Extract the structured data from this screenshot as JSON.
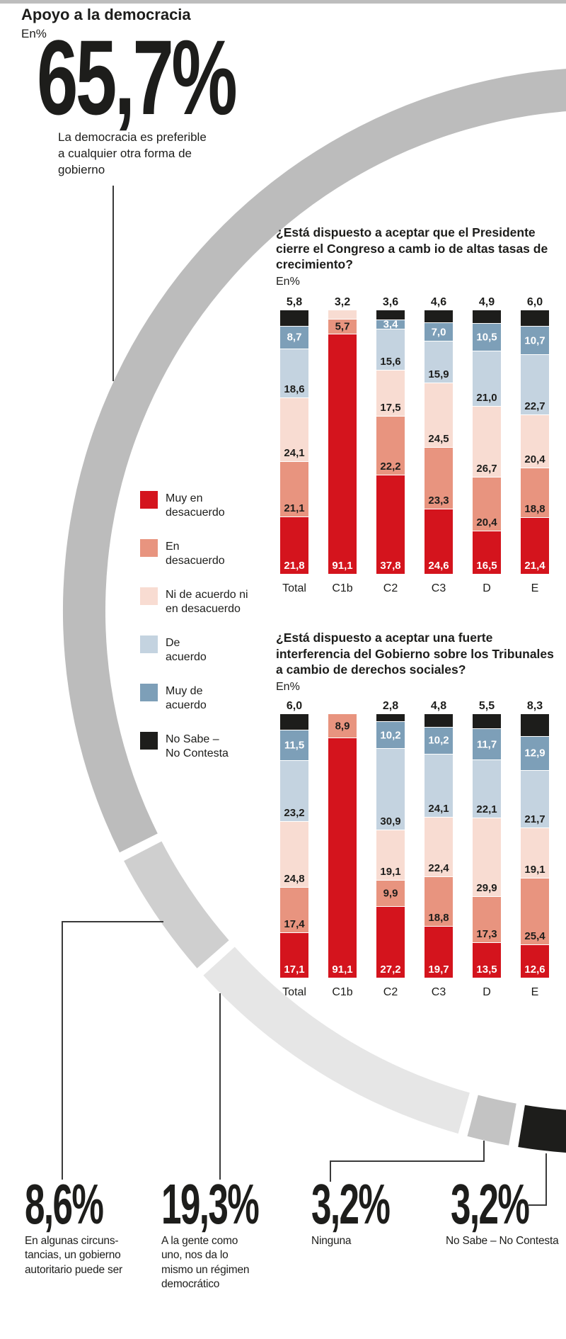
{
  "header": {
    "title": "Apoyo a la democracia",
    "unit": "En%"
  },
  "hero": {
    "value": "65,7%",
    "caption": "La democracia es preferible\na cualquier otra forma de\ngobierno"
  },
  "design": {
    "category_colors": {
      "muy_des": "#d4141d",
      "des": "#e8947f",
      "ni": "#f8dcd2",
      "ac": "#c4d3e0",
      "muy_ac": "#7d9fb8",
      "ns": "#1d1d1b"
    },
    "top_rule_color": "#bdbdbd",
    "leader_color": "#3a3a3a"
  },
  "legend": {
    "items": [
      {
        "key": "muy_des",
        "label": "Muy en\ndesacuerdo"
      },
      {
        "key": "des",
        "label": "En\ndesacuerdo"
      },
      {
        "key": "ni",
        "label": "Ni de acuerdo ni\nen desacuerdo"
      },
      {
        "key": "ac",
        "label": "De\nacuerdo"
      },
      {
        "key": "muy_ac",
        "label": "Muy de\nacuerdo"
      },
      {
        "key": "ns",
        "label": "No Sabe –\nNo Contesta"
      }
    ]
  },
  "chart_data": [
    {
      "type": "bar",
      "stacked": true,
      "title": "¿Está dispuesto a aceptar que el Presidente\ncierre el Congreso a camb io de altas tasas de\ncrecimiento?",
      "unit": "En%",
      "categories": [
        "Total",
        "C1b",
        "C2",
        "C3",
        "D",
        "E"
      ],
      "ylim": [
        0,
        100
      ],
      "series": [
        {
          "key": "ns",
          "name": "No Sabe – No Contesta",
          "values": [
            5.8,
            null,
            3.6,
            4.6,
            4.9,
            6.0
          ]
        },
        {
          "key": "muy_ac",
          "name": "Muy de acuerdo",
          "values": [
            8.7,
            null,
            3.4,
            7.0,
            10.5,
            10.7
          ]
        },
        {
          "key": "ac",
          "name": "De acuerdo",
          "values": [
            18.6,
            null,
            15.6,
            15.9,
            21.0,
            22.7
          ]
        },
        {
          "key": "ni",
          "name": "Ni de acuerdo ni en desacuerdo",
          "values": [
            24.1,
            3.2,
            17.5,
            24.5,
            26.7,
            20.4
          ]
        },
        {
          "key": "des",
          "name": "En desacuerdo",
          "values": [
            21.1,
            5.7,
            22.2,
            23.3,
            20.4,
            18.8
          ]
        },
        {
          "key": "muy_des",
          "name": "Muy en desacuerdo",
          "values": [
            21.8,
            91.1,
            37.8,
            24.6,
            16.5,
            21.4
          ]
        }
      ]
    },
    {
      "type": "bar",
      "stacked": true,
      "title": "¿Está dispuesto a aceptar una fuerte\ninterferencia del Gobierno sobre los Tribunales\na cambio de derechos sociales?",
      "unit": "En%",
      "categories": [
        "Total",
        "C1b",
        "C2",
        "C3",
        "D",
        "E"
      ],
      "ylim": [
        0,
        100
      ],
      "series": [
        {
          "key": "ns",
          "name": "No Sabe – No Contesta",
          "values": [
            6.0,
            null,
            2.8,
            4.8,
            5.5,
            8.3
          ]
        },
        {
          "key": "muy_ac",
          "name": "Muy de acuerdo",
          "values": [
            11.5,
            null,
            10.2,
            10.2,
            11.7,
            12.9
          ]
        },
        {
          "key": "ac",
          "name": "De acuerdo",
          "values": [
            23.2,
            null,
            30.9,
            24.1,
            22.1,
            21.7
          ]
        },
        {
          "key": "ni",
          "name": "Ni de acuerdo ni en desacuerdo",
          "values": [
            24.8,
            null,
            19.1,
            22.4,
            29.9,
            19.1
          ]
        },
        {
          "key": "des",
          "name": "En desacuerdo",
          "values": [
            17.4,
            8.9,
            9.9,
            18.8,
            17.3,
            25.4
          ]
        },
        {
          "key": "muy_des",
          "name": "Muy en desacuerdo",
          "values": [
            17.1,
            91.1,
            27.2,
            19.7,
            13.5,
            12.6
          ]
        }
      ]
    },
    {
      "type": "arc",
      "title": "Apoyo a la democracia",
      "unit": "En%",
      "segments": [
        {
          "label": "La democracia es preferible a cualquier otra forma de gobierno",
          "value": 65.7,
          "color": "#bcbcbc"
        },
        {
          "label": "En algunas circunstancias, un gobierno autoritario puede ser",
          "value": 8.6,
          "color": "#cfcfcf"
        },
        {
          "label": "A la gente como uno, nos da lo mismo un régimen democrático",
          "value": 19.3,
          "color": "#e6e6e6"
        },
        {
          "label": "Ninguna",
          "value": 3.2,
          "color": "#c3c3c3"
        },
        {
          "label": "No Sabe – No Contesta",
          "value": 3.2,
          "color": "#1d1d1b"
        }
      ]
    }
  ],
  "annotations": [
    {
      "value": "8,6%",
      "caption": "En algunas circuns-\ntancias, un gobierno\nautoritario puede ser"
    },
    {
      "value": "19,3%",
      "caption": "A la gente como\nuno, nos da lo\nmismo un régimen\ndemocrático"
    },
    {
      "value": "3,2%",
      "caption": "Ninguna"
    },
    {
      "value": "3,2%",
      "caption": "No Sabe –  No Contesta"
    }
  ]
}
